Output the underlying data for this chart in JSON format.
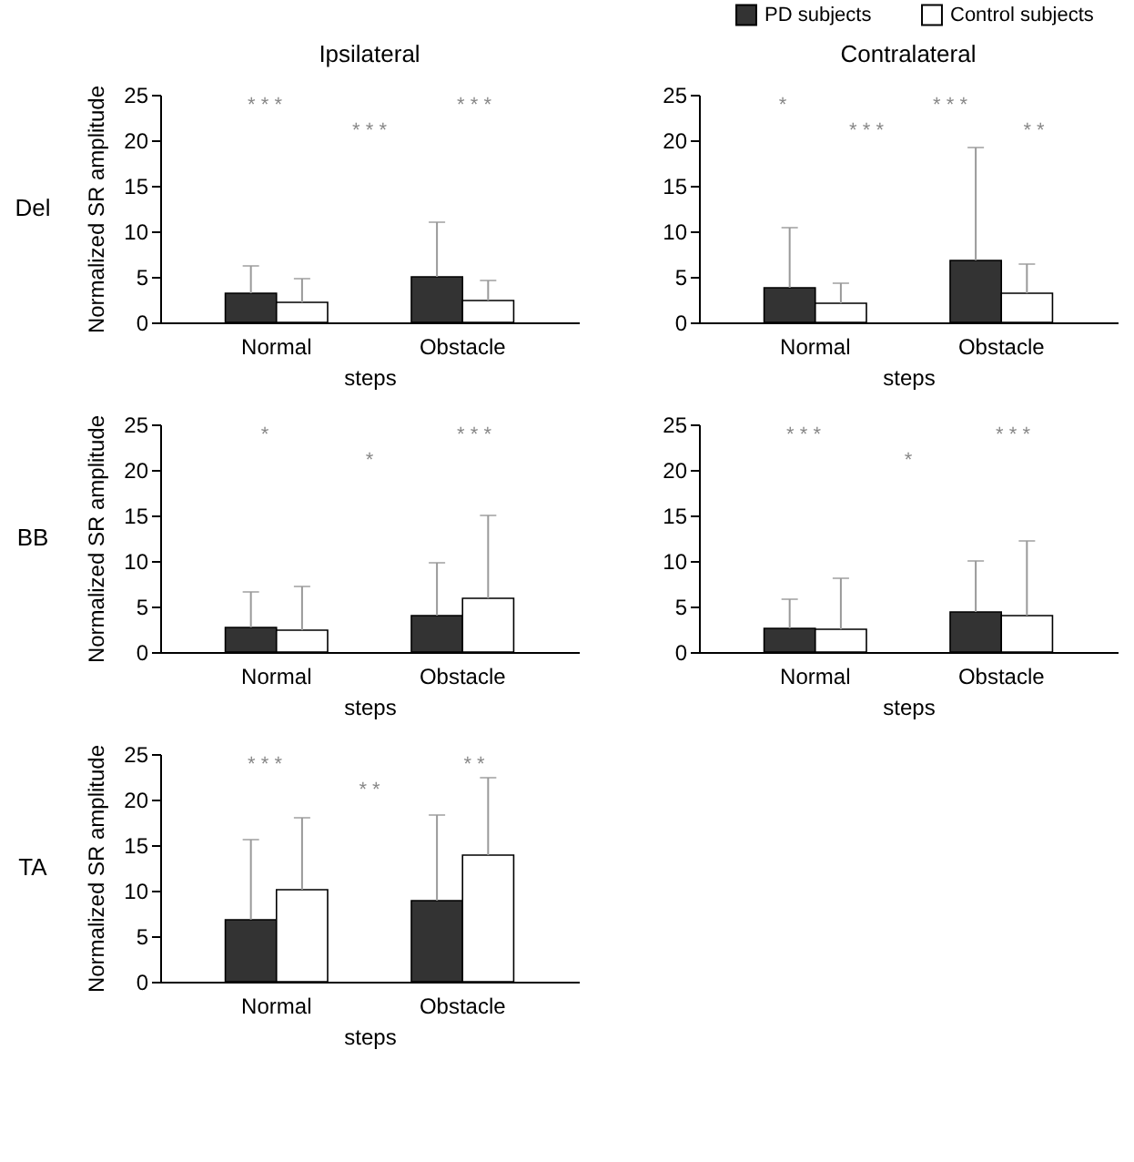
{
  "chart_data": [
    {
      "type": "bar",
      "title": "Ipsilateral",
      "xlabel": "steps",
      "ylabel": "Normalized SR amplitude",
      "categories": [
        "Normal",
        "Obstacle"
      ],
      "ylim": [
        0,
        25
      ],
      "yticks": [
        0,
        5,
        10,
        15,
        20,
        25
      ],
      "series": [
        {
          "color": "#333333",
          "values": [
            3.2,
            5.0
          ],
          "errors": [
            [
              3.2,
              6.2
            ],
            [
              5.0,
              11
            ]
          ]
        },
        {
          "color": "#ffffff",
          "values": [
            2.2,
            2.4
          ],
          "errors": [
            [
              2.2,
              4.8
            ],
            [
              2.4,
              4.6
            ]
          ]
        }
      ],
      "annotations": [
        "Del",
        "* * *",
        "* * *",
        "* * *"
      ]
    },
    {
      "type": "bar",
      "title": "Contralateral",
      "xlabel": "steps",
      "categories": [
        "Normal",
        "Obstacle"
      ],
      "ylim": [
        0,
        25
      ],
      "yticks": [
        0,
        5,
        10,
        15,
        20,
        25
      ],
      "legend": "top",
      "series": [
        {
          "name": "PD subjects",
          "color": "#333333",
          "values": [
            3.8,
            6.8
          ],
          "errors": [
            [
              3.8,
              10.4
            ],
            [
              6.8,
              19.2
            ]
          ]
        },
        {
          "name": "Control subjects",
          "color": "#ffffff",
          "values": [
            2.1,
            3.2
          ],
          "errors": [
            [
              2.1,
              4.3
            ],
            [
              3.2,
              6.4
            ]
          ]
        }
      ],
      "annotations": [
        "*",
        "* * *",
        "* * *",
        "* *"
      ]
    },
    {
      "type": "bar",
      "xlabel": "steps",
      "ylabel": "Normalized SR amplitude",
      "categories": [
        "Normal",
        "Obstacle"
      ],
      "ylim": [
        0,
        25
      ],
      "yticks": [
        0,
        5,
        10,
        15,
        20,
        25
      ],
      "series": [
        {
          "color": "#333333",
          "values": [
            2.7,
            4.0
          ],
          "errors": [
            [
              2.7,
              6.6
            ],
            [
              4.0,
              9.8
            ]
          ]
        },
        {
          "color": "#ffffff",
          "values": [
            2.4,
            5.9
          ],
          "errors": [
            [
              2.4,
              7.2
            ],
            [
              5.9,
              15
            ]
          ]
        }
      ],
      "annotations": [
        "BB",
        "*",
        "*",
        "* * *"
      ]
    },
    {
      "type": "bar",
      "xlabel": "steps",
      "categories": [
        "Normal",
        "Obstacle"
      ],
      "ylim": [
        0,
        25
      ],
      "yticks": [
        0,
        5,
        10,
        15,
        20,
        25
      ],
      "series": [
        {
          "color": "#333333",
          "values": [
            2.6,
            4.4
          ],
          "errors": [
            [
              2.6,
              5.8
            ],
            [
              4.4,
              10
            ]
          ]
        },
        {
          "color": "#ffffff",
          "values": [
            2.5,
            4.0
          ],
          "errors": [
            [
              2.5,
              8.1
            ],
            [
              4.0,
              12.2
            ]
          ]
        }
      ],
      "annotations": [
        "* * *",
        "*",
        "* * *"
      ]
    },
    {
      "type": "bar",
      "xlabel": "steps",
      "ylabel": "Normalized SR amplitude",
      "categories": [
        "Normal",
        "Obstacle"
      ],
      "ylim": [
        0,
        25
      ],
      "yticks": [
        0,
        5,
        10,
        15,
        20,
        25
      ],
      "series": [
        {
          "color": "#333333",
          "values": [
            6.8,
            8.9
          ],
          "errors": [
            [
              6.8,
              15.6
            ],
            [
              8.9,
              18.3
            ]
          ]
        },
        {
          "color": "#ffffff",
          "values": [
            10.1,
            13.9
          ],
          "errors": [
            [
              10.1,
              18
            ],
            [
              13.9,
              22.4
            ]
          ]
        }
      ],
      "annotations": [
        "TA",
        "* * *",
        "* *",
        "* *"
      ]
    }
  ]
}
